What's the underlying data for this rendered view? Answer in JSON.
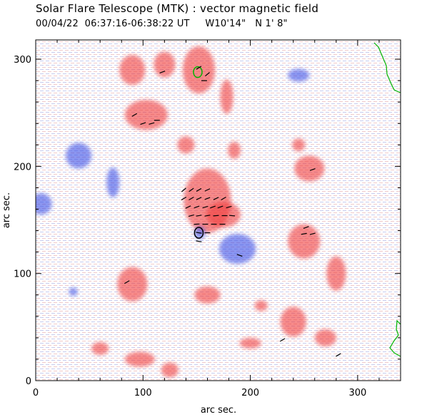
{
  "header": {
    "title": "Solar Flare Telescope (MTK) : vector magnetic field",
    "subtitle": "00/04/22  06:37:16-06:38:22 UT     W10'14\"   N 1' 8\""
  },
  "chart_data": {
    "type": "heatmap",
    "xlabel": "arc sec.",
    "ylabel": "arc sec.",
    "xlim": [
      0,
      340
    ],
    "ylim": [
      0,
      318
    ],
    "x_ticks": [
      0,
      100,
      200,
      300
    ],
    "y_ticks": [
      0,
      100,
      200,
      300
    ],
    "grid": false,
    "colors": {
      "positive": "#f03c3c",
      "negative": "#3c50e6",
      "vectors": "#000000",
      "limb_contour": "#00b400"
    },
    "positive_regions": [
      {
        "x": 90,
        "y": 290,
        "rx": 12,
        "ry": 14
      },
      {
        "x": 152,
        "y": 290,
        "rx": 15,
        "ry": 22
      },
      {
        "x": 120,
        "y": 295,
        "rx": 10,
        "ry": 12
      },
      {
        "x": 103,
        "y": 248,
        "rx": 20,
        "ry": 14
      },
      {
        "x": 178,
        "y": 265,
        "rx": 6,
        "ry": 16
      },
      {
        "x": 160,
        "y": 168,
        "rx": 22,
        "ry": 30
      },
      {
        "x": 175,
        "y": 155,
        "rx": 16,
        "ry": 12
      },
      {
        "x": 255,
        "y": 198,
        "rx": 14,
        "ry": 12
      },
      {
        "x": 250,
        "y": 130,
        "rx": 15,
        "ry": 16
      },
      {
        "x": 280,
        "y": 100,
        "rx": 9,
        "ry": 16
      },
      {
        "x": 90,
        "y": 90,
        "rx": 14,
        "ry": 16
      },
      {
        "x": 240,
        "y": 55,
        "rx": 12,
        "ry": 14
      },
      {
        "x": 210,
        "y": 70,
        "rx": 6,
        "ry": 5
      },
      {
        "x": 97,
        "y": 20,
        "rx": 14,
        "ry": 7
      },
      {
        "x": 200,
        "y": 35,
        "rx": 10,
        "ry": 5
      },
      {
        "x": 160,
        "y": 80,
        "rx": 12,
        "ry": 8
      },
      {
        "x": 270,
        "y": 40,
        "rx": 10,
        "ry": 8
      },
      {
        "x": 125,
        "y": 10,
        "rx": 8,
        "ry": 7
      },
      {
        "x": 60,
        "y": 30,
        "rx": 8,
        "ry": 6
      },
      {
        "x": 185,
        "y": 215,
        "rx": 6,
        "ry": 8
      },
      {
        "x": 245,
        "y": 220,
        "rx": 6,
        "ry": 6
      },
      {
        "x": 140,
        "y": 220,
        "rx": 8,
        "ry": 8
      }
    ],
    "negative_regions": [
      {
        "x": 188,
        "y": 123,
        "rx": 17,
        "ry": 14
      },
      {
        "x": 153,
        "y": 138,
        "rx": 5,
        "ry": 6
      },
      {
        "x": 72,
        "y": 185,
        "rx": 6,
        "ry": 14
      },
      {
        "x": 40,
        "y": 210,
        "rx": 12,
        "ry": 12
      },
      {
        "x": 5,
        "y": 165,
        "rx": 10,
        "ry": 10
      },
      {
        "x": 35,
        "y": 83,
        "rx": 4,
        "ry": 4
      },
      {
        "x": 245,
        "y": 285,
        "rx": 10,
        "ry": 6
      }
    ],
    "field_vectors": [
      {
        "x": 118,
        "y": 288,
        "angle": 20
      },
      {
        "x": 152,
        "y": 292,
        "angle": 30
      },
      {
        "x": 160,
        "y": 286,
        "angle": 40
      },
      {
        "x": 157,
        "y": 280,
        "angle": 0
      },
      {
        "x": 92,
        "y": 248,
        "angle": 30
      },
      {
        "x": 100,
        "y": 240,
        "angle": 20
      },
      {
        "x": 108,
        "y": 240,
        "angle": 15
      },
      {
        "x": 113,
        "y": 243,
        "angle": 0
      },
      {
        "x": 138,
        "y": 178,
        "angle": 40
      },
      {
        "x": 145,
        "y": 178,
        "angle": 35
      },
      {
        "x": 152,
        "y": 178,
        "angle": 30
      },
      {
        "x": 160,
        "y": 178,
        "angle": 25
      },
      {
        "x": 138,
        "y": 170,
        "angle": 30
      },
      {
        "x": 145,
        "y": 170,
        "angle": 30
      },
      {
        "x": 152,
        "y": 170,
        "angle": 25
      },
      {
        "x": 160,
        "y": 170,
        "angle": 20
      },
      {
        "x": 168,
        "y": 170,
        "angle": 25
      },
      {
        "x": 175,
        "y": 170,
        "angle": 30
      },
      {
        "x": 142,
        "y": 162,
        "angle": 25
      },
      {
        "x": 150,
        "y": 162,
        "angle": 20
      },
      {
        "x": 158,
        "y": 162,
        "angle": 15
      },
      {
        "x": 165,
        "y": 162,
        "angle": 20
      },
      {
        "x": 172,
        "y": 162,
        "angle": 20
      },
      {
        "x": 180,
        "y": 162,
        "angle": 15
      },
      {
        "x": 145,
        "y": 154,
        "angle": 15
      },
      {
        "x": 152,
        "y": 154,
        "angle": 10
      },
      {
        "x": 160,
        "y": 154,
        "angle": 10
      },
      {
        "x": 168,
        "y": 154,
        "angle": 5
      },
      {
        "x": 176,
        "y": 154,
        "angle": 0
      },
      {
        "x": 183,
        "y": 154,
        "angle": -5
      },
      {
        "x": 150,
        "y": 146,
        "angle": 5
      },
      {
        "x": 158,
        "y": 146,
        "angle": 0
      },
      {
        "x": 166,
        "y": 146,
        "angle": 0
      },
      {
        "x": 174,
        "y": 146,
        "angle": 0
      },
      {
        "x": 152,
        "y": 138,
        "angle": -10
      },
      {
        "x": 160,
        "y": 138,
        "angle": 0
      },
      {
        "x": 152,
        "y": 130,
        "angle": -10
      },
      {
        "x": 190,
        "y": 117,
        "angle": -20
      },
      {
        "x": 252,
        "y": 143,
        "angle": 20
      },
      {
        "x": 250,
        "y": 137,
        "angle": 10
      },
      {
        "x": 258,
        "y": 137,
        "angle": 15
      },
      {
        "x": 258,
        "y": 197,
        "angle": 20
      },
      {
        "x": 85,
        "y": 92,
        "angle": 30
      },
      {
        "x": 230,
        "y": 38,
        "angle": 30
      },
      {
        "x": 282,
        "y": 24,
        "angle": 30
      }
    ],
    "polarity_contours": [
      {
        "x": 151,
        "y": 288,
        "rx": 4,
        "ry": 5,
        "color": "#00b400"
      },
      {
        "x": 152,
        "y": 138,
        "rx": 4,
        "ry": 5,
        "color": "#000000"
      }
    ]
  }
}
